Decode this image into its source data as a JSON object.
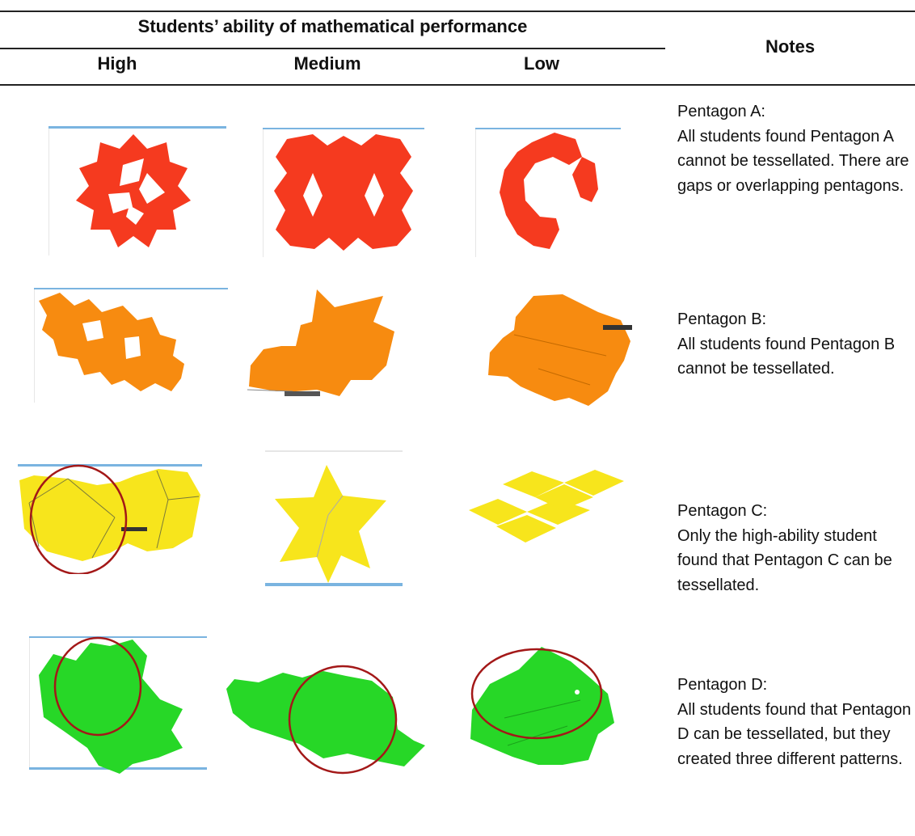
{
  "header": {
    "group_label": "Students’ ability of mathematical performance",
    "notes_label": "Notes",
    "columns": [
      "High",
      "Medium",
      "Low"
    ]
  },
  "colors": {
    "pentagon_a": "#f53a1f",
    "pentagon_b": "#f78b10",
    "pentagon_c": "#f7e51c",
    "pentagon_d": "#27d727",
    "frame_bar": "#7ab4e0",
    "circle": "#a31818"
  },
  "rows": [
    {
      "name": "pentagon-a",
      "note_title": "Pentagon A:",
      "note_text": "All students found Pentagon A cannot be tessellated. There are gaps or overlapping pentagons."
    },
    {
      "name": "pentagon-b",
      "note_title": "Pentagon B:",
      "note_text": "All students found Pentagon B cannot be tessellated."
    },
    {
      "name": "pentagon-c",
      "note_title": "Pentagon C:",
      "note_text": "Only the high-ability student found that Pentagon C can be tessellated."
    },
    {
      "name": "pentagon-d",
      "note_title": "Pentagon D:",
      "note_text": "All students found that Pentagon D can be tessellated, but they created three different patterns."
    }
  ]
}
